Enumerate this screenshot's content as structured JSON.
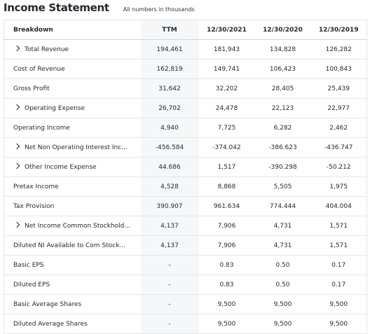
{
  "header": {
    "title": "Income Statement",
    "note": "All numbers in thousands"
  },
  "table": {
    "columns": [
      "Breakdown",
      "TTM",
      "12/30/2021",
      "12/30/2020",
      "12/30/2019"
    ],
    "rows": [
      [
        "Total Revenue",
        "194,461",
        "181,943",
        "134,828",
        "126,282"
      ],
      [
        "Cost of Revenue",
        "162,819",
        "149,741",
        "106,423",
        "100,843"
      ],
      [
        "Gross Profit",
        "31,642",
        "32,202",
        "28,405",
        "25,439"
      ],
      [
        "Operating Expense",
        "26,702",
        "24,478",
        "22,123",
        "22,977"
      ],
      [
        "Operating Income",
        "4,940",
        "7,725",
        "6,282",
        "2,462"
      ],
      [
        "Net Non Operating Interest Inc...",
        "-456.584",
        "-374.042",
        "-386.623",
        "-436.747"
      ],
      [
        "Other Income Expense",
        "44.686",
        "1,517",
        "-390.298",
        "-50.212"
      ],
      [
        "Pretax Income",
        "4,528",
        "8,868",
        "5,505",
        "1,975"
      ],
      [
        "Tax Provision",
        "390.907",
        "961.634",
        "774.444",
        "404.004"
      ],
      [
        "Net Income Common Stockhold...",
        "4,137",
        "7,906",
        "4,731",
        "1,571"
      ],
      [
        "Diluted NI Available to Com Stock...",
        "4,137",
        "7,906",
        "4,731",
        "1,571"
      ],
      [
        "Basic EPS",
        "-",
        "0.83",
        "0.50",
        "0.17"
      ],
      [
        "Diluted EPS",
        "-",
        "0.83",
        "0.50",
        "0.17"
      ],
      [
        "Basic Average Shares",
        "-",
        "9,500",
        "9,500",
        "9,500"
      ],
      [
        "Diluted Average Shares",
        "-",
        "9,500",
        "9,500",
        "9,500"
      ]
    ]
  }
}
